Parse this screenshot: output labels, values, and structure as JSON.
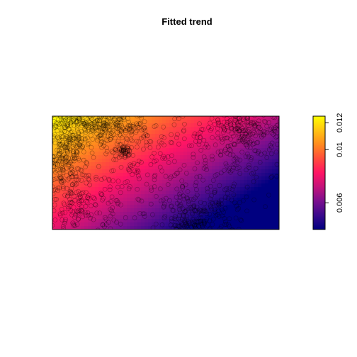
{
  "chart_data": {
    "type": "heatmap",
    "title": "Fitted trend",
    "xlabel": "",
    "ylabel": "",
    "axes_drawn": false,
    "colorbar": {
      "position": "right",
      "orientation": "vertical",
      "range": [
        0.004,
        0.0125
      ],
      "ticks": [
        0.006,
        0.01,
        0.012
      ],
      "tick_labels": [
        "0.006",
        "0.01",
        "0.012"
      ],
      "palette": [
        "#000080",
        "#3a0a8c",
        "#7a0f8e",
        "#c2137a",
        "#ff1464",
        "#ff4c3c",
        "#ff8a1e",
        "#ffc313",
        "#ffff00"
      ]
    },
    "points": {
      "style": "open-circle",
      "color": "#000000",
      "opacity": 0.35,
      "approx_count": 1500,
      "dense_regions": [
        "left edge",
        "top edge",
        "upper-middle",
        "right side",
        "bottom-center"
      ]
    }
  }
}
